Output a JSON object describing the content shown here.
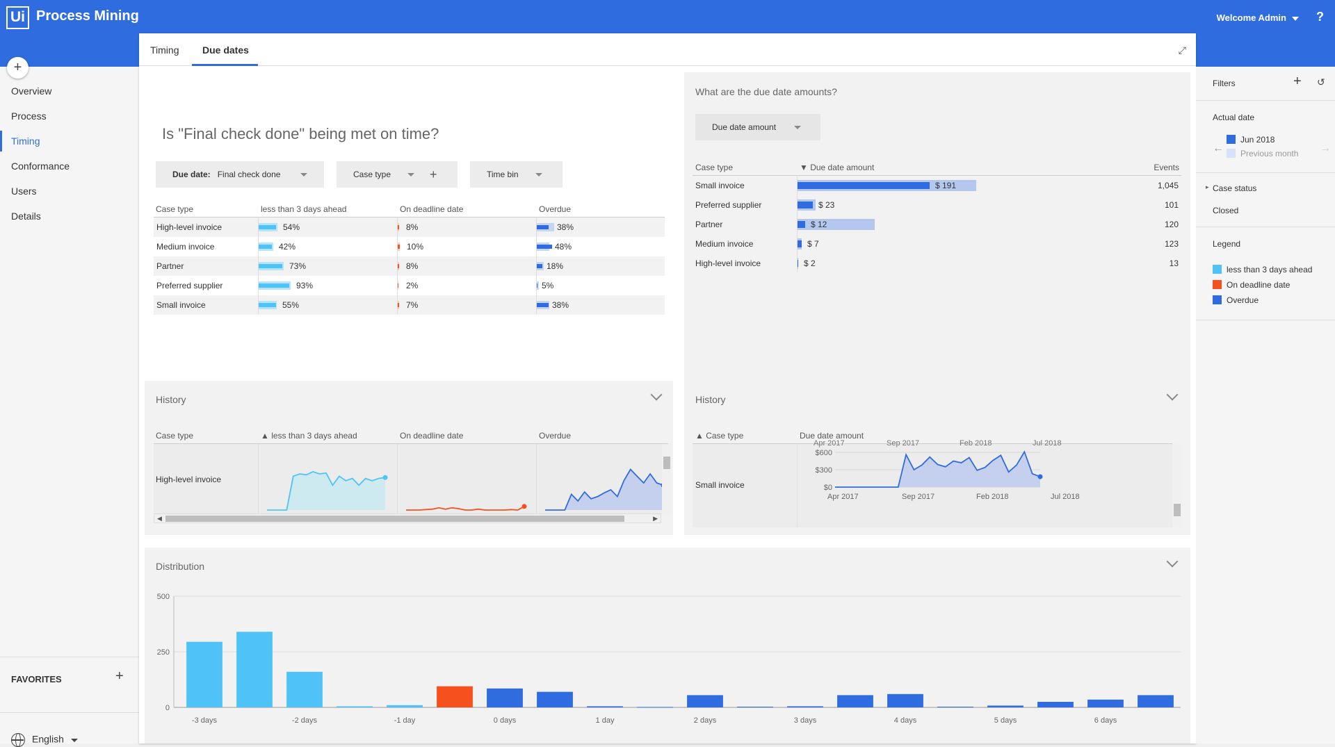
{
  "app": {
    "logo": "Ui",
    "title": "Process Mining",
    "user": "Welcome Admin",
    "help": "?"
  },
  "sidebar": {
    "add": "+",
    "items": [
      "Overview",
      "Process",
      "Timing",
      "Conformance",
      "Users",
      "Details"
    ],
    "favorites": "FAVORITES",
    "favorites_add": "+",
    "language": "English"
  },
  "tabs": [
    "Timing",
    "Due dates"
  ],
  "ontime": {
    "title": "Is \"Final check done\" being met on time?",
    "dd_due_label": "Due date:",
    "dd_due_value": "Final check done",
    "dd_case_type": "Case type",
    "dd_plus": "+",
    "dd_time_bin": "Time bin",
    "headers": [
      "Case type",
      "less than 3 days ahead",
      "On deadline date",
      "Overdue"
    ],
    "rows": [
      {
        "label": "High-level invoice",
        "ahead": "54%",
        "ahead_v": 0.54,
        "ahead_bg": 0.58,
        "ondl": "8%",
        "ondl_v": 0.08,
        "over": "38%",
        "over_v": 0.38,
        "over_bg": 0.54
      },
      {
        "label": "Medium invoice",
        "ahead": "42%",
        "ahead_v": 0.42,
        "ahead_bg": 0.45,
        "ondl": "10%",
        "ondl_v": 0.1,
        "over": "48%",
        "over_v": 0.48,
        "over_bg": 0.4
      },
      {
        "label": "Partner",
        "ahead": "73%",
        "ahead_v": 0.73,
        "ahead_bg": 0.77,
        "ondl": "8%",
        "ondl_v": 0.08,
        "over": "18%",
        "over_v": 0.18,
        "over_bg": 0.22
      },
      {
        "label": "Preferred supplier",
        "ahead": "93%",
        "ahead_v": 0.93,
        "ahead_bg": 0.97,
        "ondl": "2%",
        "ondl_v": 0.02,
        "over": "5%",
        "over_v": 0.05,
        "over_bg": 0.09
      },
      {
        "label": "Small invoice",
        "ahead": "55%",
        "ahead_v": 0.55,
        "ahead_bg": 0.57,
        "ondl": "7%",
        "ondl_v": 0.07,
        "over": "38%",
        "over_v": 0.38,
        "over_bg": 0.4
      }
    ]
  },
  "amounts": {
    "title": "What are the due date amounts?",
    "dd": "Due date amount",
    "headers": [
      "Case type",
      "▼ Due date amount",
      "Events"
    ],
    "rows": [
      {
        "label": "Small invoice",
        "amount": "$ 191",
        "value": 191,
        "bg": 258,
        "events": "1,045"
      },
      {
        "label": "Preferred supplier",
        "amount": "$ 23",
        "value": 23,
        "bg": 27,
        "events": "101"
      },
      {
        "label": "Partner",
        "amount": "$ 12",
        "value": 12,
        "bg": 112,
        "events": "120"
      },
      {
        "label": "Medium invoice",
        "amount": "$ 7",
        "value": 7,
        "bg": 7,
        "events": "123"
      },
      {
        "label": "High-level invoice",
        "amount": "$ 2",
        "value": 2,
        "bg": 2,
        "events": "13"
      }
    ],
    "max": 258
  },
  "history_left": {
    "title": "History",
    "headers": [
      "Case type",
      "▲ less than 3 days ahead",
      "On deadline date",
      "Overdue"
    ],
    "row_label": "High-level invoice",
    "ahead": [
      0.0,
      0.0,
      0.0,
      0.0,
      0.75,
      0.8,
      0.78,
      0.85,
      0.8,
      0.82,
      0.55,
      0.75,
      0.65,
      0.7,
      0.55,
      0.7,
      0.65,
      0.7,
      0.72
    ],
    "ondl": [
      0.0,
      0.0,
      0.0,
      0.01,
      0.02,
      0.05,
      0.02,
      0.05,
      0.03,
      0.0,
      0.0,
      0.02,
      0.0,
      0.0,
      0.0,
      0.0,
      0.01,
      0.0,
      0.08
    ],
    "over": [
      0.0,
      0.0,
      0.0,
      0.0,
      0.35,
      0.2,
      0.4,
      0.25,
      0.3,
      0.38,
      0.45,
      0.3,
      0.65,
      0.9,
      0.75,
      0.6,
      0.8,
      0.6,
      0.55
    ]
  },
  "history_right": {
    "title": "History",
    "headers": [
      "▲ Case type",
      "Due date amount"
    ],
    "row_label": "Small invoice",
    "clipped_ticks": [
      "Apr 2017",
      "Sep 2017",
      "Feb 2018",
      "Jul 2018"
    ],
    "yticks": [
      "$600",
      "$300",
      "$0"
    ],
    "xticks": [
      "Apr 2017",
      "Sep 2017",
      "Feb 2018",
      "Jul 2018"
    ],
    "values": [
      0,
      0,
      0,
      0,
      0,
      0,
      0,
      0,
      0,
      560,
      300,
      380,
      520,
      390,
      350,
      450,
      420,
      510,
      290,
      340,
      460,
      550,
      260,
      380,
      610,
      230,
      180
    ]
  },
  "distribution": {
    "title": "Distribution",
    "chart_data": {
      "type": "bar",
      "yticks": [
        "500",
        "250",
        "0"
      ],
      "ylim": [
        0,
        500
      ],
      "xticks": [
        "-3 days",
        "-2 days",
        "-1 day",
        "0 days",
        "1 day",
        "2 days",
        "3 days",
        "4 days",
        "5 days",
        "6 days"
      ],
      "values": [
        295,
        340,
        160,
        5,
        10,
        95,
        85,
        70,
        5,
        2,
        55,
        3,
        5,
        55,
        60,
        3,
        8,
        25,
        35,
        55
      ],
      "groups": [
        "ahead",
        "ahead",
        "ahead",
        "ahead",
        "ahead",
        "ondl",
        "over",
        "over",
        "over",
        "over",
        "over",
        "over",
        "over",
        "over",
        "over",
        "over",
        "over",
        "over",
        "over",
        "over"
      ]
    }
  },
  "filters": {
    "title": "Filters",
    "add": "+",
    "reset": "↺",
    "actual_date": "Actual date",
    "current_period": "Jun 2018",
    "previous_period": "Previous month",
    "case_status": "Case status",
    "case_status_value": "Closed",
    "legend_title": "Legend",
    "legend": [
      {
        "label": "less than 3 days ahead",
        "color": "#4fc3f7"
      },
      {
        "label": "On deadline date",
        "color": "#f4511e"
      },
      {
        "label": "Overdue",
        "color": "#2f6cdf"
      }
    ]
  },
  "colors": {
    "brand": "#2f6cdf",
    "ahead": "#4fc3f7",
    "ondl": "#f4511e",
    "over": "#2f6cdf"
  }
}
